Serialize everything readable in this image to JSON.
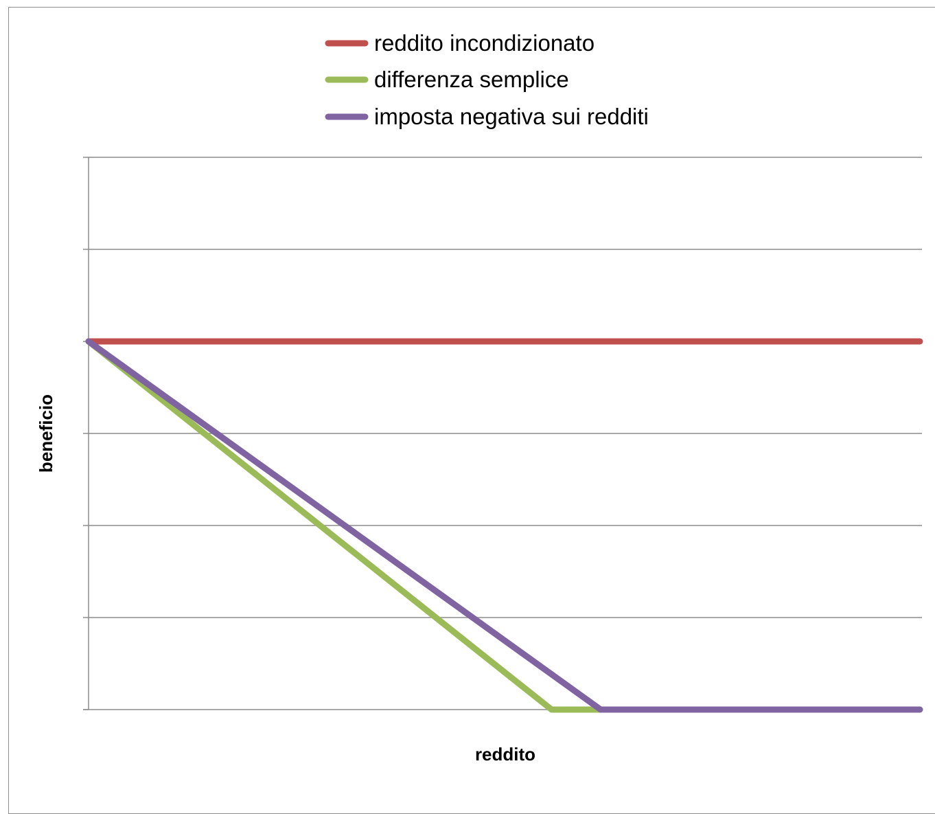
{
  "chart_data": {
    "type": "line",
    "title": "",
    "xlabel": "reddito",
    "ylabel": "beneficio",
    "x_tick_labels": [],
    "y_tick_labels": [],
    "xlim": [
      0,
      100
    ],
    "ylim": [
      0,
      100
    ],
    "grid": true,
    "legend_position": "top",
    "series": [
      {
        "name": "reddito incondizionato",
        "color": "#c0504d",
        "points": [
          [
            0,
            80
          ],
          [
            100,
            80
          ]
        ]
      },
      {
        "name": "differenza semplice",
        "color": "#9bbb59",
        "points": [
          [
            0,
            80
          ],
          [
            55.7,
            0
          ],
          [
            61.6,
            0
          ],
          [
            100,
            0
          ]
        ]
      },
      {
        "name": "imposta negativa sui redditi",
        "color": "#8064a2",
        "points": [
          [
            0,
            80
          ],
          [
            61.6,
            0
          ],
          [
            100,
            0
          ]
        ]
      }
    ]
  }
}
